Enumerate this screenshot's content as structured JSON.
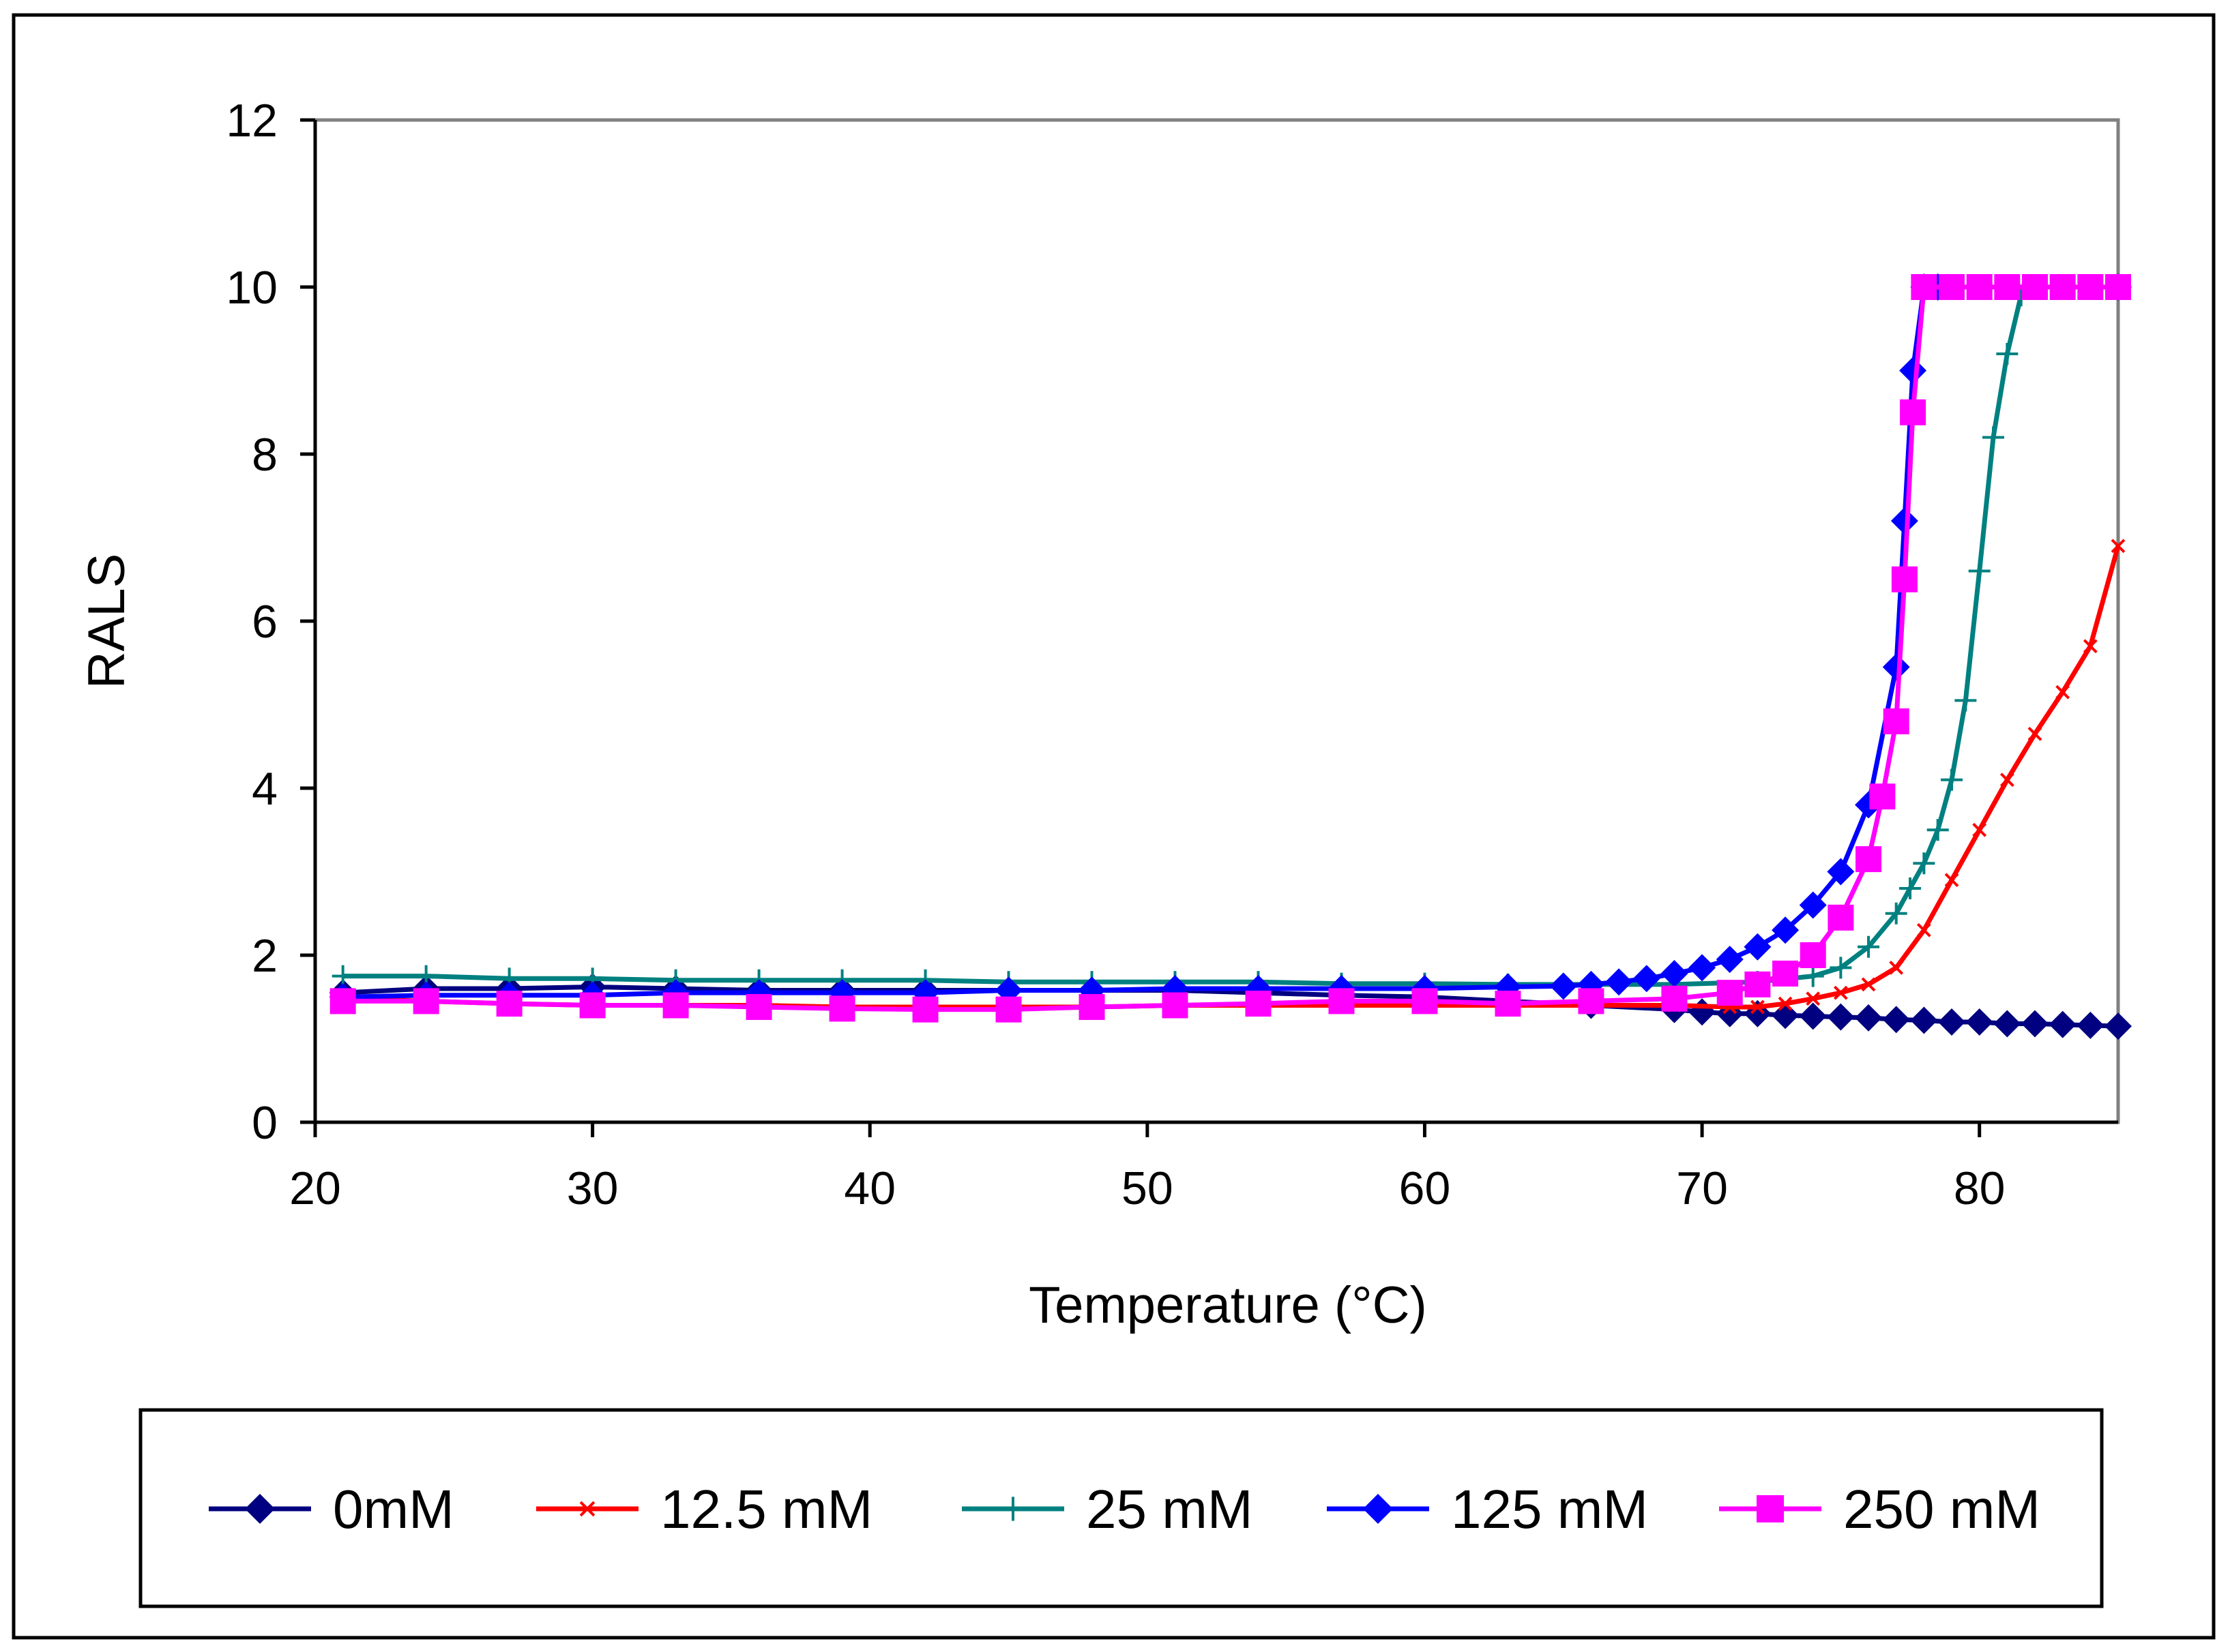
{
  "chart_data": {
    "type": "line",
    "title": "",
    "xlabel": "Temperature (°C)",
    "ylabel": "RALS",
    "xlim": [
      20,
      85
    ],
    "ylim": [
      0,
      12
    ],
    "xticks": [
      20,
      30,
      40,
      50,
      60,
      70,
      80
    ],
    "yticks": [
      0,
      2,
      4,
      6,
      8,
      10,
      12
    ],
    "grid": false,
    "legend_position": "bottom",
    "series": [
      {
        "name": "0mM",
        "color": "#000080",
        "marker": "diamond",
        "x": [
          21,
          24,
          27,
          30,
          33,
          36,
          39,
          42,
          45,
          48,
          51,
          54,
          57,
          60,
          63,
          66,
          69,
          70,
          71,
          72,
          73,
          74,
          75,
          76,
          77,
          78,
          79,
          80,
          81,
          82,
          83,
          84,
          85
        ],
        "y": [
          1.55,
          1.6,
          1.6,
          1.62,
          1.6,
          1.58,
          1.58,
          1.58,
          1.58,
          1.58,
          1.58,
          1.55,
          1.52,
          1.5,
          1.45,
          1.4,
          1.35,
          1.32,
          1.3,
          1.3,
          1.28,
          1.27,
          1.26,
          1.25,
          1.23,
          1.22,
          1.2,
          1.2,
          1.18,
          1.18,
          1.17,
          1.16,
          1.15
        ]
      },
      {
        "name": "12.5 mM",
        "color": "#ff0000",
        "marker": "x",
        "x": [
          21,
          24,
          27,
          30,
          33,
          36,
          39,
          42,
          45,
          48,
          51,
          54,
          57,
          60,
          63,
          66,
          69,
          71,
          72,
          73,
          74,
          75,
          76,
          77,
          78,
          79,
          80,
          81,
          82,
          83,
          84,
          85
        ],
        "y": [
          1.48,
          1.45,
          1.42,
          1.4,
          1.4,
          1.4,
          1.38,
          1.38,
          1.38,
          1.38,
          1.4,
          1.4,
          1.4,
          1.4,
          1.4,
          1.4,
          1.4,
          1.38,
          1.38,
          1.42,
          1.48,
          1.55,
          1.65,
          1.85,
          2.3,
          2.9,
          3.5,
          4.1,
          4.65,
          5.15,
          5.7,
          6.9
        ]
      },
      {
        "name": "25 mM",
        "color": "#008080",
        "marker": "plus",
        "x": [
          21,
          24,
          27,
          30,
          33,
          36,
          39,
          42,
          45,
          48,
          51,
          54,
          57,
          60,
          63,
          66,
          69,
          72,
          74,
          75,
          76,
          77,
          77.5,
          78,
          78.5,
          79,
          79.5,
          80,
          80.5,
          81,
          81.5,
          82,
          85
        ],
        "y": [
          1.75,
          1.75,
          1.72,
          1.72,
          1.7,
          1.7,
          1.7,
          1.7,
          1.68,
          1.68,
          1.68,
          1.68,
          1.66,
          1.66,
          1.65,
          1.65,
          1.65,
          1.68,
          1.75,
          1.85,
          2.1,
          2.5,
          2.8,
          3.1,
          3.5,
          4.1,
          5.05,
          6.6,
          8.2,
          9.2,
          9.9,
          10,
          10
        ]
      },
      {
        "name": "125 mM",
        "color": "#0000ff",
        "marker": "diamond",
        "x": [
          21,
          24,
          27,
          30,
          33,
          36,
          39,
          42,
          45,
          48,
          51,
          54,
          57,
          60,
          63,
          65,
          66,
          67,
          68,
          69,
          70,
          71,
          72,
          73,
          74,
          75,
          76,
          77,
          77.3,
          77.6,
          78,
          78.5,
          85
        ],
        "y": [
          1.5,
          1.52,
          1.52,
          1.52,
          1.55,
          1.55,
          1.55,
          1.55,
          1.58,
          1.58,
          1.6,
          1.6,
          1.6,
          1.6,
          1.62,
          1.63,
          1.65,
          1.68,
          1.72,
          1.78,
          1.85,
          1.95,
          2.1,
          2.3,
          2.6,
          3.0,
          3.8,
          5.45,
          7.2,
          9.0,
          10,
          10,
          10
        ]
      },
      {
        "name": "250 mM",
        "color": "#ff00ff",
        "marker": "square",
        "x": [
          21,
          24,
          27,
          30,
          33,
          36,
          39,
          42,
          45,
          48,
          51,
          54,
          57,
          60,
          63,
          66,
          69,
          71,
          72,
          73,
          74,
          75,
          76,
          76.5,
          77,
          77.3,
          77.6,
          78,
          79,
          80,
          81,
          82,
          83,
          84,
          85
        ],
        "y": [
          1.45,
          1.45,
          1.42,
          1.4,
          1.4,
          1.38,
          1.36,
          1.35,
          1.35,
          1.38,
          1.4,
          1.42,
          1.45,
          1.45,
          1.42,
          1.45,
          1.48,
          1.55,
          1.65,
          1.78,
          2.0,
          2.45,
          3.15,
          3.9,
          4.8,
          6.5,
          8.5,
          10,
          10,
          10,
          10,
          10,
          10,
          10,
          10
        ]
      }
    ]
  }
}
